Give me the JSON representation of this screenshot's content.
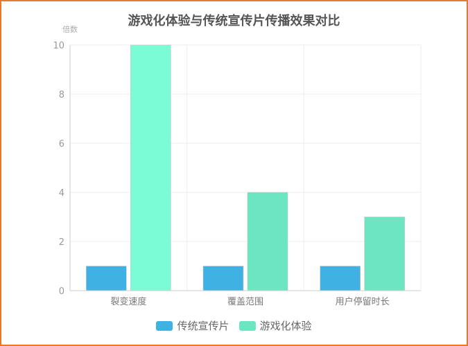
{
  "chart_data": {
    "type": "bar",
    "title": "游戏化体验与传统宣传片传播效果对比",
    "ylabel": "倍数",
    "xlabel": "",
    "ylim": [
      0,
      10
    ],
    "yticks": [
      0,
      2,
      4,
      6,
      8,
      10
    ],
    "categories": [
      "裂变速度",
      "覆盖范围",
      "用户停留时长"
    ],
    "series": [
      {
        "name": "传统宣传片",
        "values": [
          1,
          1,
          1
        ]
      },
      {
        "name": "游戏化体验",
        "values": [
          10,
          4,
          3
        ]
      }
    ],
    "colors": [
      "#3fb1e3",
      "#6be6c1"
    ],
    "highlight_color": "#7bfcd5",
    "grid": true,
    "legend_position": "bottom"
  }
}
